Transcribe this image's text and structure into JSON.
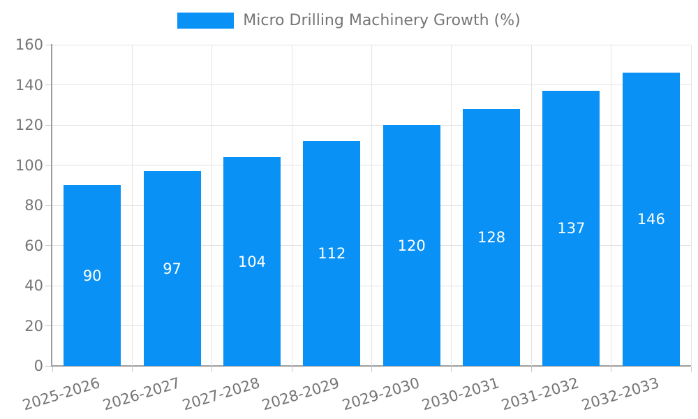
{
  "chart_data": {
    "type": "bar",
    "title": "",
    "legend": "Micro Drilling Machinery Growth (%)",
    "legend_position": "top",
    "categories": [
      "2025-2026",
      "2026-2027",
      "2027-2028",
      "2028-2029",
      "2029-2030",
      "2030-2031",
      "2031-2032",
      "2032-2033"
    ],
    "values": [
      90,
      97,
      104,
      112,
      120,
      128,
      137,
      146
    ],
    "bar_value_labels": [
      "90",
      "97",
      "104",
      "112",
      "120",
      "128",
      "137",
      "146"
    ],
    "xlabel": "",
    "ylabel": "",
    "ylim": [
      0,
      160
    ],
    "yticks": [
      0,
      20,
      40,
      60,
      80,
      100,
      120,
      140,
      160
    ],
    "grid": true,
    "bar_color": "#0A91F5",
    "grid_color": "#e3e3e3",
    "axis_color": "#9e9e9e",
    "tick_label_color": "#757575",
    "bar_label_color": "#ffffff"
  }
}
